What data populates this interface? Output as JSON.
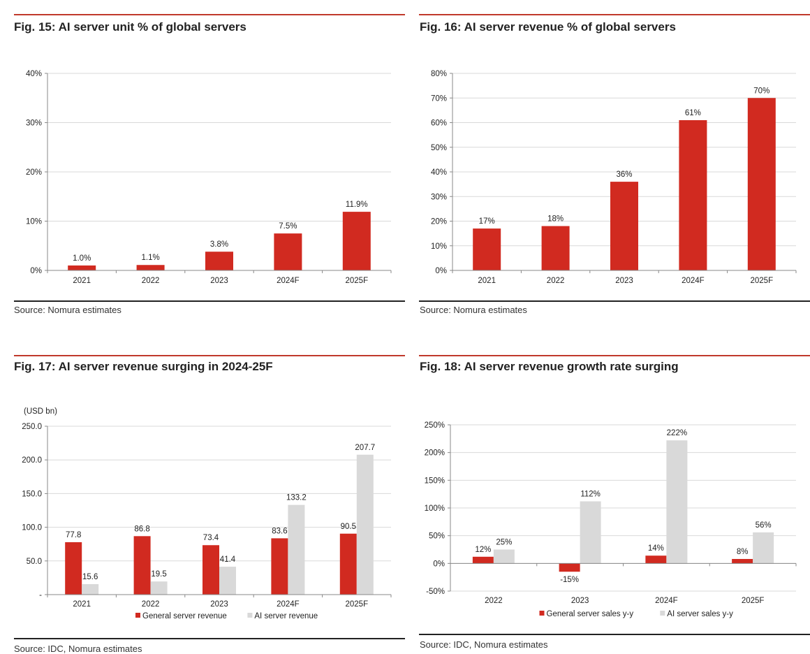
{
  "colors": {
    "primary": "#d12a20",
    "secondary": "#d9d9d9",
    "rule": "#c0392b",
    "axis": "#888888",
    "grid": "#d9d9d9"
  },
  "figures": [
    {
      "title": "Fig. 15: AI server unit % of global servers",
      "source": "Source: Nomura estimates",
      "chart_data": {
        "type": "bar",
        "title": "Fig. 15: AI server unit % of global servers",
        "categories": [
          "2021",
          "2022",
          "2023",
          "2024F",
          "2025F"
        ],
        "series": [
          {
            "name": "AI server unit %",
            "values": [
              1.0,
              1.1,
              3.8,
              7.5,
              11.9
            ],
            "labels": [
              "1.0%",
              "1.1%",
              "3.8%",
              "7.5%",
              "11.9%"
            ]
          }
        ],
        "ylim": [
          0,
          40
        ],
        "yticks": [
          0,
          10,
          20,
          30,
          40
        ],
        "ytick_labels": [
          "0%",
          "10%",
          "20%",
          "30%",
          "40%"
        ],
        "xlabel": "",
        "ylabel": "",
        "grid": true
      }
    },
    {
      "title": "Fig. 16: AI server revenue % of global servers",
      "source": "Source: Nomura estimates",
      "chart_data": {
        "type": "bar",
        "title": "Fig. 16: AI server revenue % of global servers",
        "categories": [
          "2021",
          "2022",
          "2023",
          "2024F",
          "2025F"
        ],
        "series": [
          {
            "name": "AI server revenue %",
            "values": [
              17,
              18,
              36,
              61,
              70
            ],
            "labels": [
              "17%",
              "18%",
              "36%",
              "61%",
              "70%"
            ]
          }
        ],
        "ylim": [
          0,
          80
        ],
        "yticks": [
          0,
          10,
          20,
          30,
          40,
          50,
          60,
          70,
          80
        ],
        "ytick_labels": [
          "0%",
          "10%",
          "20%",
          "30%",
          "40%",
          "50%",
          "60%",
          "70%",
          "80%"
        ],
        "xlabel": "",
        "ylabel": "",
        "grid": true
      }
    },
    {
      "title": "Fig. 17: AI server revenue surging in 2024-25F",
      "source": "Source: IDC, Nomura estimates",
      "chart_data": {
        "type": "bar",
        "title": "Fig. 17: AI server revenue surging in 2024-25F",
        "unit": "(USD bn)",
        "categories": [
          "2021",
          "2022",
          "2023",
          "2024F",
          "2025F"
        ],
        "series": [
          {
            "name": "General server revenue",
            "values": [
              77.8,
              86.8,
              73.4,
              83.6,
              90.5
            ],
            "labels": [
              "77.8",
              "86.8",
              "73.4",
              "83.6",
              "90.5"
            ]
          },
          {
            "name": "AI server revenue",
            "values": [
              15.6,
              19.5,
              41.4,
              133.2,
              207.7
            ],
            "labels": [
              "15.6",
              "19.5",
              "41.4",
              "133.2",
              "207.7"
            ]
          }
        ],
        "ylim": [
          0,
          250
        ],
        "yticks": [
          0,
          50,
          100,
          150,
          200,
          250
        ],
        "ytick_labels": [
          "-",
          "50.0",
          "100.0",
          "150.0",
          "200.0",
          "250.0"
        ],
        "legend": "bottom",
        "xlabel": "",
        "ylabel": "",
        "grid": true
      }
    },
    {
      "title": "Fig. 18: AI server revenue growth rate surging",
      "source": "Source: IDC, Nomura estimates",
      "chart_data": {
        "type": "bar",
        "title": "Fig. 18: AI server revenue growth rate surging",
        "categories": [
          "2022",
          "2023",
          "2024F",
          "2025F"
        ],
        "series": [
          {
            "name": "General server sales y-y",
            "values": [
              12,
              -15,
              14,
              8
            ],
            "labels": [
              "12%",
              "-15%",
              "14%",
              "8%"
            ]
          },
          {
            "name": "AI server sales y-y",
            "values": [
              25,
              112,
              222,
              56
            ],
            "labels": [
              "25%",
              "112%",
              "222%",
              "56%"
            ]
          }
        ],
        "ylim": [
          -50,
          250
        ],
        "yticks": [
          -50,
          0,
          50,
          100,
          150,
          200,
          250
        ],
        "ytick_labels": [
          "-50%",
          "0%",
          "50%",
          "100%",
          "150%",
          "200%",
          "250%"
        ],
        "legend": "bottom",
        "xlabel": "",
        "ylabel": "",
        "grid": true
      }
    }
  ]
}
